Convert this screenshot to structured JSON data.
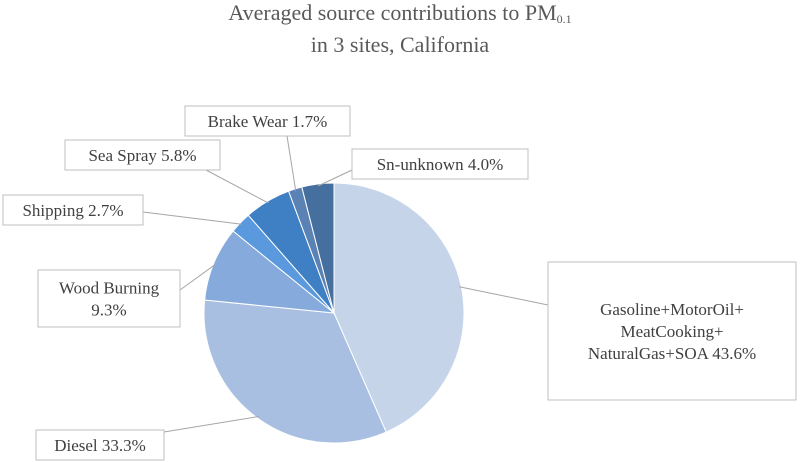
{
  "chart_data": {
    "type": "pie",
    "title_line1": "Averaged source contributions to PM",
    "title_subscript": "0.1",
    "title_line2": "in 3 sites, California",
    "slices": [
      {
        "name": "Gasoline+MotorOil+MeatCooking+NaturalGas+SOA",
        "value": 43.6,
        "label_lines": [
          "Gasoline+MotorOil+",
          "MeatCooking+",
          "NaturalGas+SOA 43.6%"
        ],
        "color": "#c6d4ea"
      },
      {
        "name": "Diesel",
        "value": 33.3,
        "label_lines": [
          "Diesel 33.3%"
        ],
        "color": "#a8bfe2"
      },
      {
        "name": "Wood Burning",
        "value": 9.3,
        "label_lines": [
          "Wood Burning",
          "9.3%"
        ],
        "color": "#86aadc"
      },
      {
        "name": "Shipping",
        "value": 2.7,
        "label_lines": [
          "Shipping 2.7%"
        ],
        "color": "#5a99dd"
      },
      {
        "name": "Sea Spray",
        "value": 5.8,
        "label_lines": [
          "Sea Spray 5.8%"
        ],
        "color": "#3f7fc4"
      },
      {
        "name": "Brake Wear",
        "value": 1.7,
        "label_lines": [
          "Brake Wear 1.7%"
        ],
        "color": "#5b82b5"
      },
      {
        "name": "Sn-unknown",
        "value": 4.0,
        "label_lines": [
          "Sn-unknown 4.0%"
        ],
        "color": "#456f9f"
      }
    ]
  }
}
